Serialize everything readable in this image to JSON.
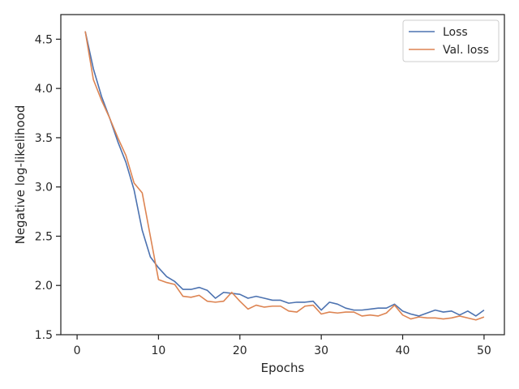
{
  "chart_data": {
    "type": "line",
    "title": "",
    "xlabel": "Epochs",
    "ylabel": "Negative log-likelihood",
    "xlim": [
      -2,
      52.5
    ],
    "ylim": [
      1.5,
      4.75
    ],
    "xticks": [
      0,
      10,
      20,
      30,
      40,
      50
    ],
    "yticks": [
      1.5,
      2.0,
      2.5,
      3.0,
      3.5,
      4.0,
      4.5
    ],
    "xtick_labels": [
      "0",
      "10",
      "20",
      "30",
      "40",
      "50"
    ],
    "ytick_labels": [
      "1.5",
      "2.0",
      "2.5",
      "3.0",
      "3.5",
      "4.0",
      "4.5"
    ],
    "grid": false,
    "legend_position": "top-right",
    "x": [
      1,
      2,
      3,
      4,
      5,
      6,
      7,
      8,
      9,
      10,
      11,
      12,
      13,
      14,
      15,
      16,
      17,
      18,
      19,
      20,
      21,
      22,
      23,
      24,
      25,
      26,
      27,
      28,
      29,
      30,
      31,
      32,
      33,
      34,
      35,
      36,
      37,
      38,
      39,
      40,
      41,
      42,
      43,
      44,
      45,
      46,
      47,
      48,
      49,
      50
    ],
    "series": [
      {
        "name": "Loss",
        "color": "#4c72b0",
        "values": [
          4.58,
          4.2,
          3.92,
          3.7,
          3.46,
          3.25,
          2.97,
          2.56,
          2.29,
          2.18,
          2.09,
          2.04,
          1.96,
          1.96,
          1.98,
          1.95,
          1.87,
          1.93,
          1.92,
          1.91,
          1.87,
          1.89,
          1.87,
          1.85,
          1.85,
          1.82,
          1.83,
          1.83,
          1.84,
          1.75,
          1.83,
          1.81,
          1.77,
          1.75,
          1.75,
          1.76,
          1.77,
          1.77,
          1.81,
          1.74,
          1.71,
          1.69,
          1.72,
          1.75,
          1.73,
          1.74,
          1.7,
          1.74,
          1.69,
          1.75
        ]
      },
      {
        "name": "Val. loss",
        "color": "#dd8452",
        "values": [
          4.58,
          4.09,
          3.88,
          3.7,
          3.5,
          3.32,
          3.04,
          2.94,
          2.5,
          2.06,
          2.03,
          2.01,
          1.89,
          1.88,
          1.9,
          1.84,
          1.83,
          1.84,
          1.93,
          1.84,
          1.76,
          1.8,
          1.78,
          1.79,
          1.79,
          1.74,
          1.73,
          1.79,
          1.8,
          1.71,
          1.73,
          1.72,
          1.73,
          1.73,
          1.69,
          1.7,
          1.69,
          1.72,
          1.8,
          1.7,
          1.66,
          1.68,
          1.67,
          1.67,
          1.66,
          1.67,
          1.69,
          1.67,
          1.65,
          1.68
        ]
      }
    ]
  }
}
